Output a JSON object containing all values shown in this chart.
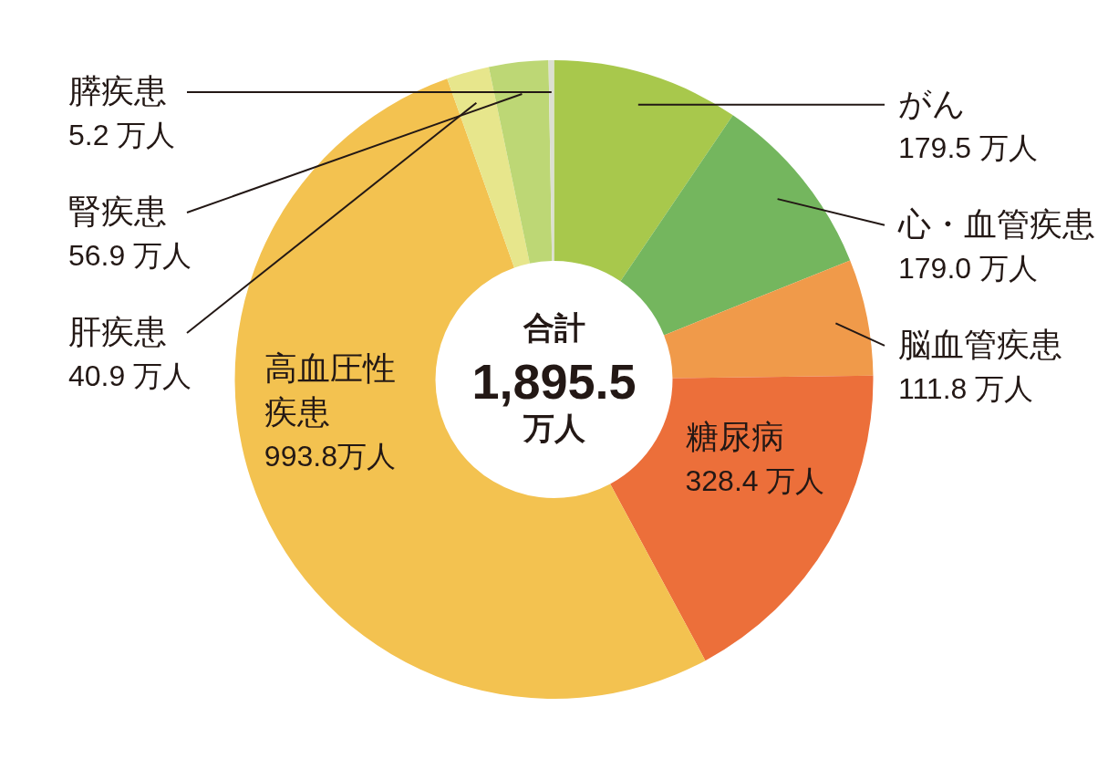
{
  "chart_data": {
    "type": "donut",
    "categories": [
      "がん",
      "心・血管疾患",
      "脳血管疾患",
      "糖尿病",
      "高血圧性疾患",
      "肝疾患",
      "腎疾患",
      "膵疾患"
    ],
    "values": [
      179.5,
      179.0,
      111.8,
      328.4,
      993.8,
      40.9,
      56.9,
      5.2
    ],
    "colors": [
      "#a8c84c",
      "#74b65e",
      "#f09a4a",
      "#ec6f3a",
      "#f3c250",
      "#e7e68c",
      "#bdd775",
      "#dcdfd2"
    ],
    "value_labels": [
      "179.5 万人",
      "179.0 万人",
      "111.8 万人",
      "328.4 万人",
      "993.8万人",
      "40.9 万人",
      "56.9 万人",
      "5.2 万人"
    ],
    "annotations": [
      "合計",
      "1,895.5",
      "万人"
    ]
  }
}
